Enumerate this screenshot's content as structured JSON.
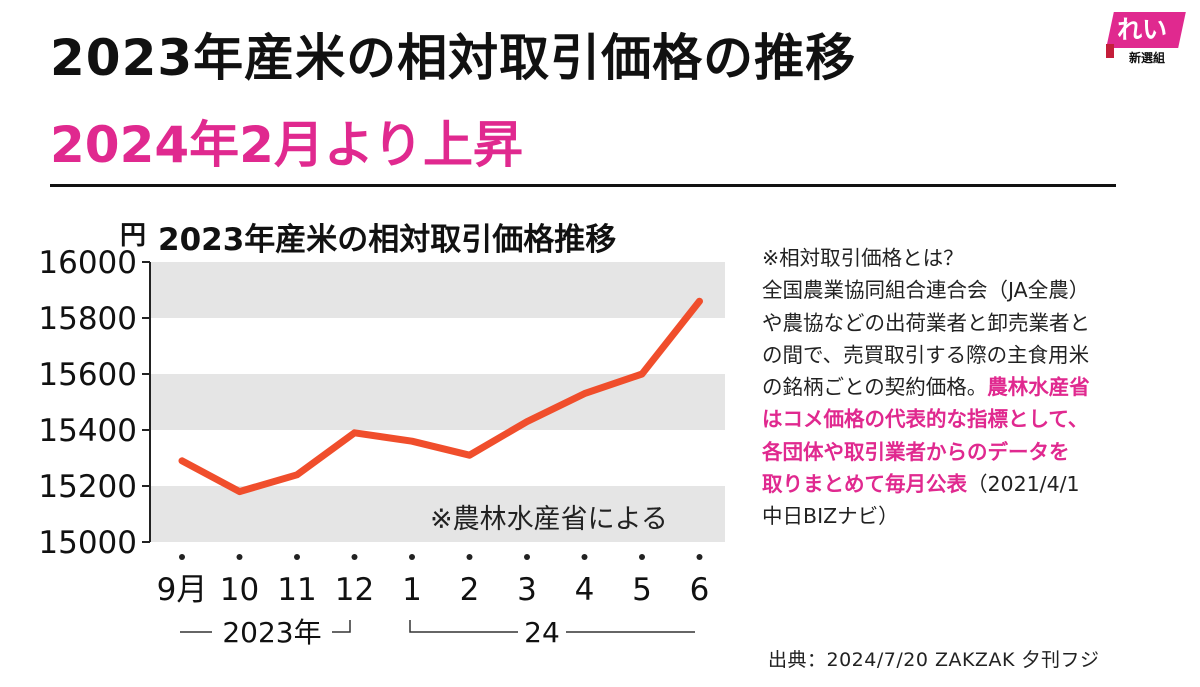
{
  "header": {
    "title": "2023年産米の相対取引価格の推移",
    "subtitle": "2024年2月より上昇"
  },
  "logo": {
    "top_text": "れいわ",
    "bottom_text": "新選組",
    "color": "#e0298f"
  },
  "chart_data": {
    "type": "line",
    "title": "2023年産米の相対取引価格推移",
    "unit_label": "円",
    "categories": [
      "9月",
      "10",
      "11",
      "12",
      "1",
      "2",
      "3",
      "4",
      "5",
      "6"
    ],
    "series": [
      {
        "values": [
          15290,
          15180,
          15240,
          15390,
          15360,
          15310,
          15430,
          15530,
          15600,
          15860
        ]
      }
    ],
    "yticks": [
      15000,
      15200,
      15400,
      15600,
      15800,
      16000
    ],
    "ylim": [
      15000,
      16000
    ],
    "year_labels": [
      "2023年",
      "24"
    ],
    "annotation": "※農林水産省による",
    "line_color": "#f04e2c",
    "band_color": "#e5e5e5",
    "grid": "alternating horizontal bands"
  },
  "note": {
    "line1": "※相対取引価格とは？",
    "line2": "全国農業協同組合連合会（JA全農）",
    "line3": "や農協などの出荷業者と卸売業者と",
    "line4": "の間で、売買取引する際の主食用米",
    "line5_plain": "の銘柄ごとの契約価格。",
    "line5_hl": "農林水産省",
    "line6_hl": "はコメ価格の代表的な指標として、",
    "line7_hl": "各団体や取引業者からのデータを",
    "line8_hl": "取りまとめて毎月公表",
    "line8_plain": "（2021/4/1",
    "line9": "中日BIZナビ）"
  },
  "source": "出典：2024/7/20  ZAKZAK  夕刊フジ"
}
